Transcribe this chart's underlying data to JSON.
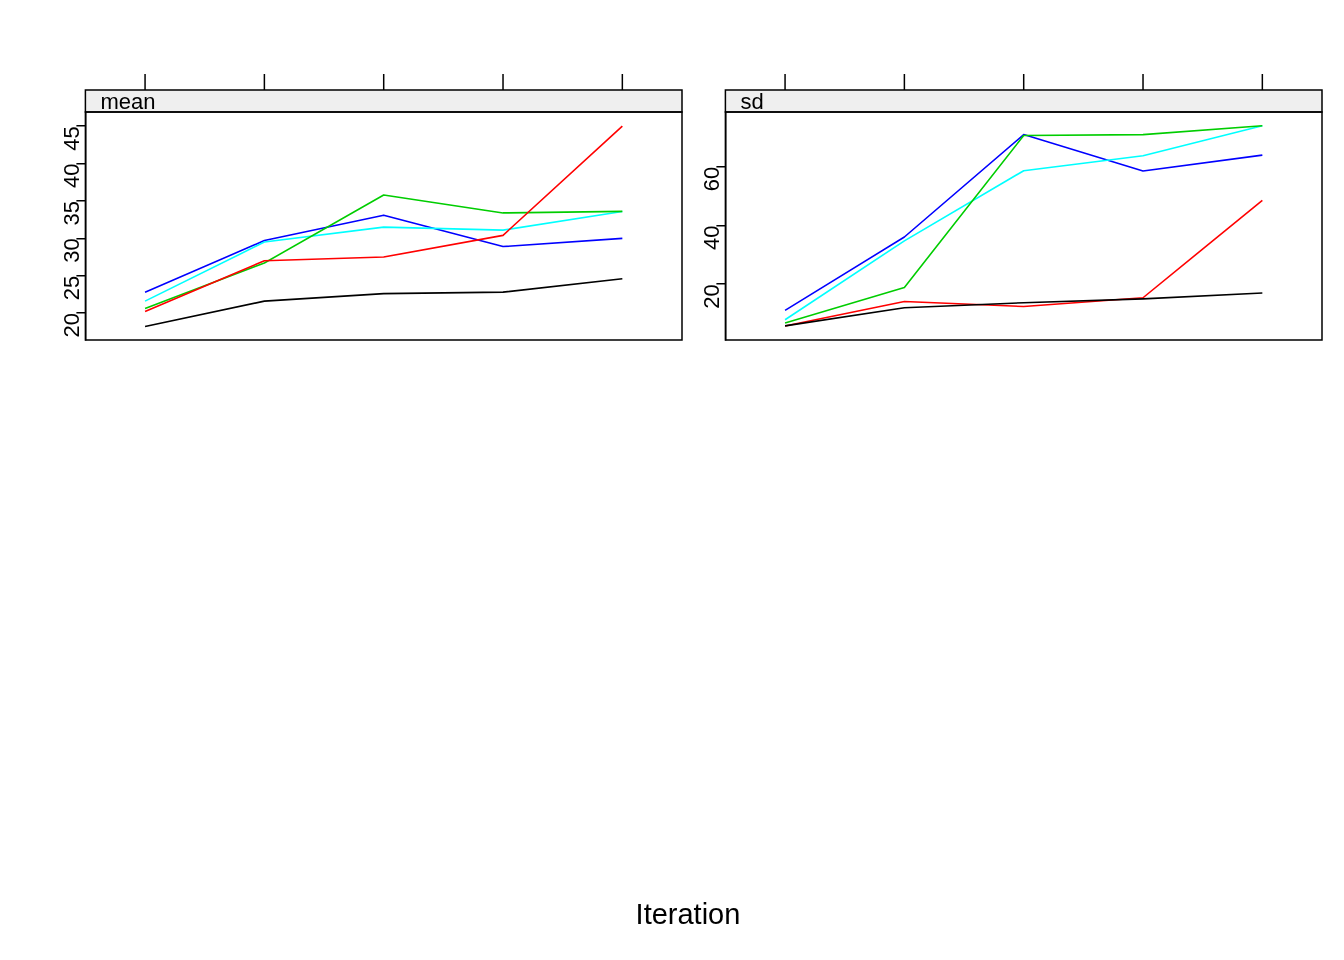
{
  "chart_data": [
    {
      "type": "line",
      "title": "mean",
      "xlabel": "Iteration",
      "categories": [
        null,
        null,
        null,
        null,
        null
      ],
      "ylim": [
        16.4,
        46.9
      ],
      "yticks": [
        20,
        25,
        30,
        35,
        40,
        45
      ],
      "grid": false,
      "legend": false,
      "tick_labels": "y",
      "marker": "none",
      "series": [
        {
          "color": "#000000",
          "values": [
            18.2,
            21.6,
            22.6,
            22.8,
            24.6
          ]
        },
        {
          "color": "#ff0000",
          "values": [
            20.2,
            27.0,
            27.5,
            30.4,
            45.0
          ]
        },
        {
          "color": "#00cd00",
          "values": [
            20.6,
            26.7,
            35.8,
            33.4,
            33.6
          ]
        },
        {
          "color": "#00ffff",
          "values": [
            21.6,
            29.5,
            31.5,
            31.1,
            33.6
          ]
        },
        {
          "color": "#0000ff",
          "values": [
            22.8,
            29.7,
            33.1,
            28.9,
            30.0
          ]
        }
      ]
    },
    {
      "type": "line",
      "title": "sd",
      "categories": [
        null,
        null,
        null,
        null,
        null
      ],
      "ylim": [
        1.0,
        78.7
      ],
      "yticks": [
        20,
        40,
        60
      ],
      "grid": false,
      "legend": false,
      "tick_labels": "y",
      "marker": "none",
      "series": [
        {
          "color": "#000000",
          "values": [
            5.8,
            12.0,
            13.7,
            15.0,
            17.0
          ]
        },
        {
          "color": "#ff0000",
          "values": [
            5.8,
            14.1,
            12.4,
            15.4,
            48.6
          ]
        },
        {
          "color": "#00cd00",
          "values": [
            6.8,
            18.9,
            70.7,
            71.0,
            74.0
          ]
        },
        {
          "color": "#00ffff",
          "values": [
            7.9,
            34.8,
            58.7,
            63.8,
            74.0
          ]
        },
        {
          "color": "#0000ff",
          "values": [
            11.1,
            36.1,
            71.0,
            58.6,
            64.0
          ]
        }
      ]
    }
  ]
}
